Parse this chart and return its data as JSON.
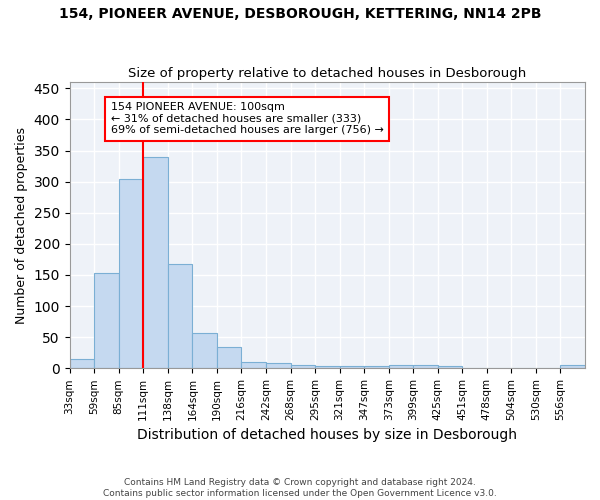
{
  "title_line1": "154, PIONEER AVENUE, DESBOROUGH, KETTERING, NN14 2PB",
  "title_line2": "Size of property relative to detached houses in Desborough",
  "xlabel": "Distribution of detached houses by size in Desborough",
  "ylabel": "Number of detached properties",
  "bar_color": "#c5d9f0",
  "bar_edge_color": "#7bafd4",
  "annotation_box_line1": "154 PIONEER AVENUE: 100sqm",
  "annotation_box_line2": "← 31% of detached houses are smaller (333)",
  "annotation_box_line3": "69% of semi-detached houses are larger (756) →",
  "footer_line1": "Contains HM Land Registry data © Crown copyright and database right 2024.",
  "footer_line2": "Contains public sector information licensed under the Open Government Licence v3.0.",
  "categories": [
    "33sqm",
    "59sqm",
    "85sqm",
    "111sqm",
    "138sqm",
    "164sqm",
    "190sqm",
    "216sqm",
    "242sqm",
    "268sqm",
    "295sqm",
    "321sqm",
    "347sqm",
    "373sqm",
    "399sqm",
    "425sqm",
    "451sqm",
    "478sqm",
    "504sqm",
    "530sqm",
    "556sqm"
  ],
  "values": [
    15,
    153,
    305,
    340,
    167,
    57,
    35,
    10,
    8,
    6,
    3,
    4,
    4,
    5,
    5,
    4,
    0,
    0,
    0,
    0,
    5
  ],
  "ylim": [
    0,
    460
  ],
  "yticks": [
    0,
    50,
    100,
    150,
    200,
    250,
    300,
    350,
    400,
    450
  ],
  "red_line_bin_index": 2.5,
  "grid_color": "#d0d8e8",
  "bg_color": "#eef2f8"
}
